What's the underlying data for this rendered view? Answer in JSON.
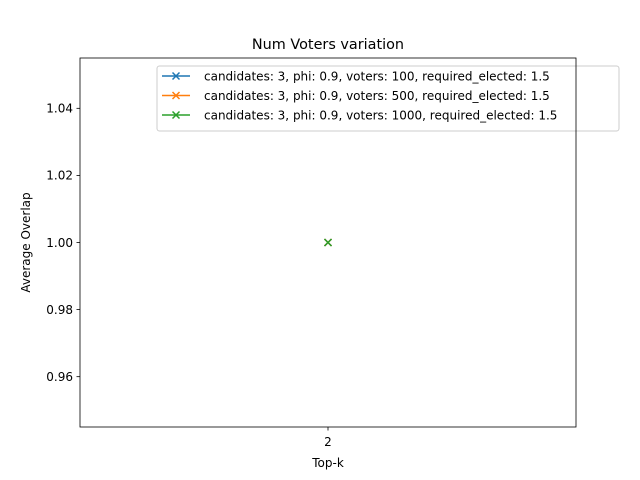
{
  "chart_data": {
    "type": "line",
    "title": "Num Voters variation",
    "xlabel": "Top-k",
    "ylabel": "Average Overlap",
    "x": [
      2
    ],
    "x_tick_labels": [
      "2"
    ],
    "ylim": [
      0.945,
      1.055
    ],
    "y_ticks": [
      0.96,
      0.98,
      1.0,
      1.02,
      1.04
    ],
    "y_tick_labels": [
      "0.96",
      "0.98",
      "1.00",
      "1.02",
      "1.04"
    ],
    "marker": "x",
    "grid": false,
    "legend_position": "upper-right",
    "series": [
      {
        "name": "candidates: 3, phi: 0.9, voters: 100, required_elected: 1.5",
        "values": [
          1.0
        ],
        "color": "#1f77b4"
      },
      {
        "name": "candidates: 3, phi: 0.9, voters: 500, required_elected: 1.5",
        "values": [
          1.0
        ],
        "color": "#ff7f0e"
      },
      {
        "name": "candidates: 3, phi: 0.9, voters: 1000, required_elected: 1.5",
        "values": [
          1.0
        ],
        "color": "#2ca02c"
      }
    ]
  }
}
